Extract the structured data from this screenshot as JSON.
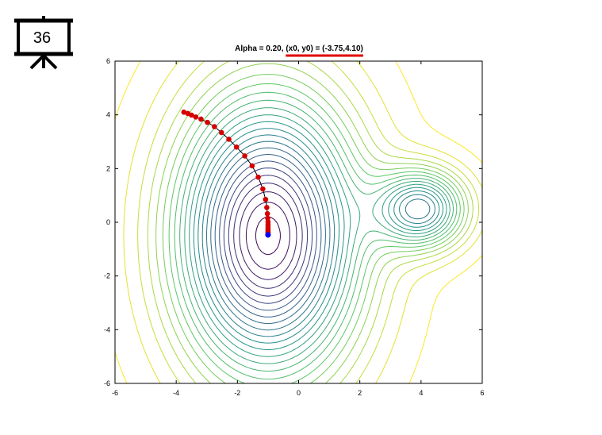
{
  "slide": {
    "number": "36"
  },
  "chart_data": {
    "type": "contour",
    "title": "Alpha = 0.20, (x0, y0) = (-3.75,4.10)",
    "title_prefix": "Alpha = 0.20, ",
    "title_highlight": "(x0, y0) = (-3.75,4.10)",
    "highlight_color": "#e00000",
    "xlabel": "",
    "ylabel": "",
    "xlim": [
      -6,
      6
    ],
    "ylim": [
      -6,
      6
    ],
    "xticks": [
      -6,
      -4,
      -2,
      0,
      2,
      4,
      6
    ],
    "yticks": [
      -6,
      -4,
      -2,
      0,
      2,
      4,
      6
    ],
    "surface": {
      "basins": [
        {
          "center": [
            -1,
            -0.5
          ],
          "sx": 2.0,
          "sy": 3.5,
          "depth": 1.0
        },
        {
          "center": [
            4,
            0.5
          ],
          "sx": 1.0,
          "sy": 1.0,
          "depth": 0.6
        }
      ],
      "contour_count": 24,
      "colormap": [
        "#440154",
        "#3b528b",
        "#21918c",
        "#5ec962",
        "#fde725"
      ]
    },
    "path": {
      "start": [
        -3.75,
        4.1
      ],
      "end": [
        -1,
        -0.47
      ],
      "color": "#d40000",
      "line_color": "#000000",
      "end_marker_color": "#0000ff",
      "points": [
        [
          -3.75,
          4.1
        ],
        [
          -3.62,
          4.05
        ],
        [
          -3.5,
          3.99
        ],
        [
          -3.36,
          3.92
        ],
        [
          -3.19,
          3.84
        ],
        [
          -2.98,
          3.72
        ],
        [
          -2.75,
          3.56
        ],
        [
          -2.52,
          3.34
        ],
        [
          -2.28,
          3.09
        ],
        [
          -2.03,
          2.8
        ],
        [
          -1.76,
          2.47
        ],
        [
          -1.52,
          2.1
        ],
        [
          -1.32,
          1.68
        ],
        [
          -1.17,
          1.24
        ],
        [
          -1.08,
          0.85
        ],
        [
          -1.04,
          0.55
        ],
        [
          -1.02,
          0.32
        ],
        [
          -1.01,
          0.15
        ],
        [
          -1.0,
          0.02
        ],
        [
          -1.0,
          -0.08
        ],
        [
          -1.0,
          -0.16
        ],
        [
          -1.0,
          -0.24
        ],
        [
          -1.0,
          -0.3
        ],
        [
          -1.0,
          -0.36
        ],
        [
          -1.0,
          -0.4
        ],
        [
          -1.0,
          -0.44
        ],
        [
          -1.0,
          -0.47
        ]
      ]
    }
  }
}
